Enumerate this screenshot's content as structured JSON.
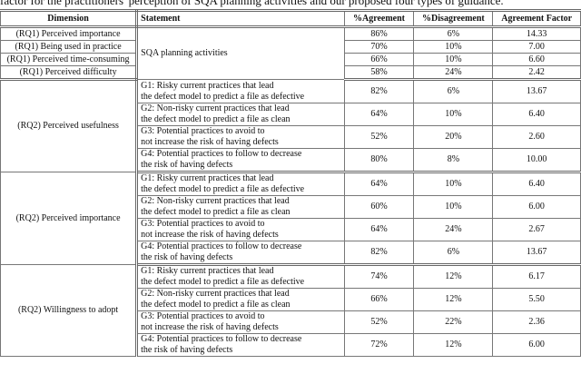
{
  "caption": "factor for the practitioners' perception of SQA planning activities and our proposed four types of guidance.",
  "headers": [
    "Dimension",
    "Statement",
    "%Agreement",
    "%Disagreement",
    "Agreement Factor"
  ],
  "rq1": {
    "statement": "SQA planning activities",
    "rows": [
      {
        "dimension": "(RQ1) Perceived importance",
        "agree": "86%",
        "disagree": "6%",
        "factor": "14.33"
      },
      {
        "dimension": "(RQ1) Being used in practice",
        "agree": "70%",
        "disagree": "10%",
        "factor": "7.00"
      },
      {
        "dimension": "(RQ1) Perceived time-consuming",
        "agree": "66%",
        "disagree": "10%",
        "factor": "6.60"
      },
      {
        "dimension": "(RQ1) Perceived difficulty",
        "agree": "58%",
        "disagree": "24%",
        "factor": "2.42"
      }
    ]
  },
  "statements": [
    [
      "G1: Risky current practices that lead",
      "the defect model to predict a file as defective"
    ],
    [
      "G2: Non-risky current practices that lead",
      "the defect model to predict a file as clean"
    ],
    [
      "G3: Potential practices to avoid to",
      "not increase the risk of having defects"
    ],
    [
      "G4: Potential practices to follow to decrease",
      "the risk of having defects"
    ]
  ],
  "rq2": [
    {
      "dimension": "(RQ2) Perceived usefulness",
      "rows": [
        {
          "agree": "82%",
          "disagree": "6%",
          "factor": "13.67"
        },
        {
          "agree": "64%",
          "disagree": "10%",
          "factor": "6.40"
        },
        {
          "agree": "52%",
          "disagree": "20%",
          "factor": "2.60"
        },
        {
          "agree": "80%",
          "disagree": "8%",
          "factor": "10.00"
        }
      ]
    },
    {
      "dimension": "(RQ2) Perceived importance",
      "rows": [
        {
          "agree": "64%",
          "disagree": "10%",
          "factor": "6.40"
        },
        {
          "agree": "60%",
          "disagree": "10%",
          "factor": "6.00"
        },
        {
          "agree": "64%",
          "disagree": "24%",
          "factor": "2.67"
        },
        {
          "agree": "82%",
          "disagree": "6%",
          "factor": "13.67"
        }
      ]
    },
    {
      "dimension": "(RQ2) Willingness to adopt",
      "rows": [
        {
          "agree": "74%",
          "disagree": "12%",
          "factor": "6.17"
        },
        {
          "agree": "66%",
          "disagree": "12%",
          "factor": "5.50"
        },
        {
          "agree": "52%",
          "disagree": "22%",
          "factor": "2.36"
        },
        {
          "agree": "72%",
          "disagree": "12%",
          "factor": "6.00"
        }
      ]
    }
  ]
}
